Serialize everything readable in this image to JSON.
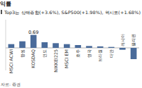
{
  "chart_data": {
    "type": "bar",
    "title": "익률",
    "subtitle": "Top3는 상해종합(+3.6%), S&P500(+1.98%), 헥시코(+1.68%)",
    "source": "자료: 증권",
    "categories": [
      "MSCI ACWI",
      "항셍",
      "KOSDAQ",
      "인도",
      "NIKKEI225",
      "MSCI EM",
      "호주",
      "영국",
      "브라질",
      "대만",
      "러시아",
      "필리핀"
    ],
    "values": [
      0.2,
      0.35,
      0.69,
      0.3,
      0.25,
      0.2,
      0.15,
      0.1,
      0.08,
      0.05,
      -0.1,
      -0.6
    ],
    "color": "#4a6b9a",
    "ylim": [
      -1.2,
      1.5
    ],
    "grid": false,
    "tick_labels": "x",
    "annotations": [
      {
        "label": "0.69",
        "category": "KOSDAQ"
      }
    ]
  }
}
